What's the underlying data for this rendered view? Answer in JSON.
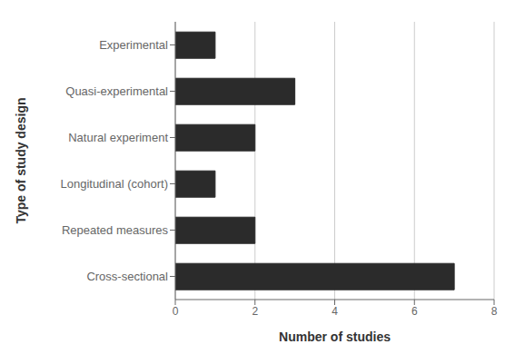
{
  "chart_data": {
    "type": "bar",
    "orientation": "horizontal",
    "categories": [
      "Cross-sectional",
      "Repeated measures",
      "Longitudinal (cohort)",
      "Natural experiment",
      "Quasi-experimental",
      "Experimental"
    ],
    "values": [
      7,
      2,
      1,
      2,
      3,
      1
    ],
    "color": "#2b2b2b",
    "xlabel": "Number of studies",
    "ylabel": "Type of study design",
    "xlim": [
      0,
      8
    ],
    "xticks": [
      0,
      2,
      4,
      6,
      8
    ],
    "grid": true
  }
}
